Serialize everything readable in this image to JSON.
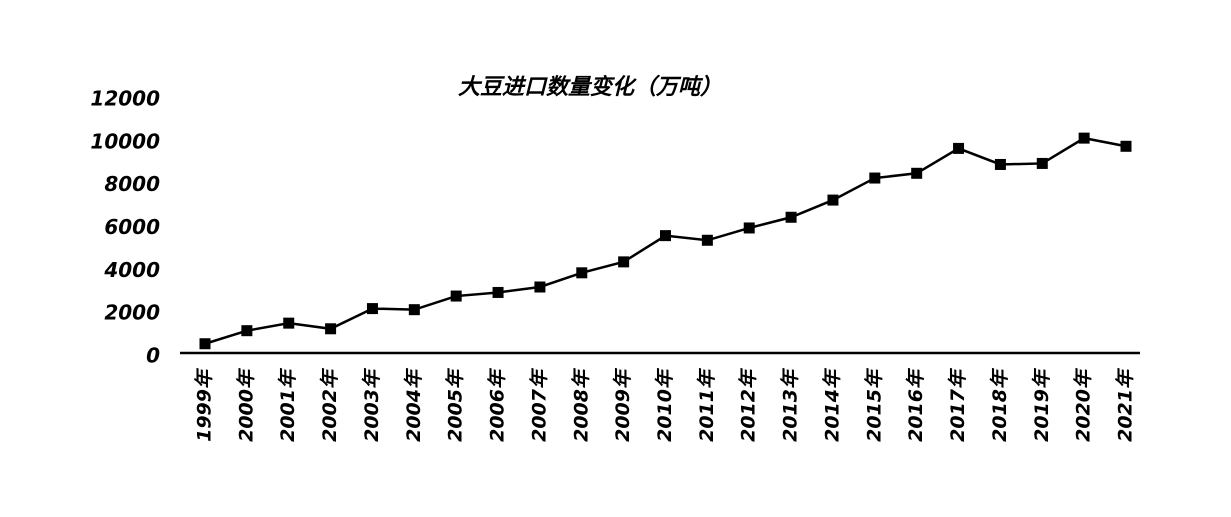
{
  "chart_data": {
    "type": "line",
    "title": "大豆进口数量变化（万吨）",
    "categories": [
      "1999年",
      "2000年",
      "2001年",
      "2002年",
      "2003年",
      "2004年",
      "2005年",
      "2006年",
      "2007年",
      "2008年",
      "2009年",
      "2010年",
      "2011年",
      "2012年",
      "2013年",
      "2014年",
      "2015年",
      "2016年",
      "2017年",
      "2018年",
      "2019年",
      "2020年",
      "2021年"
    ],
    "series": [
      {
        "name": "大豆进口数量",
        "color": "#000000",
        "values": [
          432,
          1042,
          1394,
          1131,
          2074,
          2023,
          2659,
          2827,
          3082,
          3744,
          4255,
          5480,
          5264,
          5838,
          6338,
          7140,
          8169,
          8391,
          9553,
          8803,
          8851,
          10033,
          9652
        ]
      }
    ],
    "ylim": [
      0,
      12000
    ],
    "yticks": [
      0,
      2000,
      4000,
      6000,
      8000,
      10000,
      12000
    ],
    "grid": false
  }
}
